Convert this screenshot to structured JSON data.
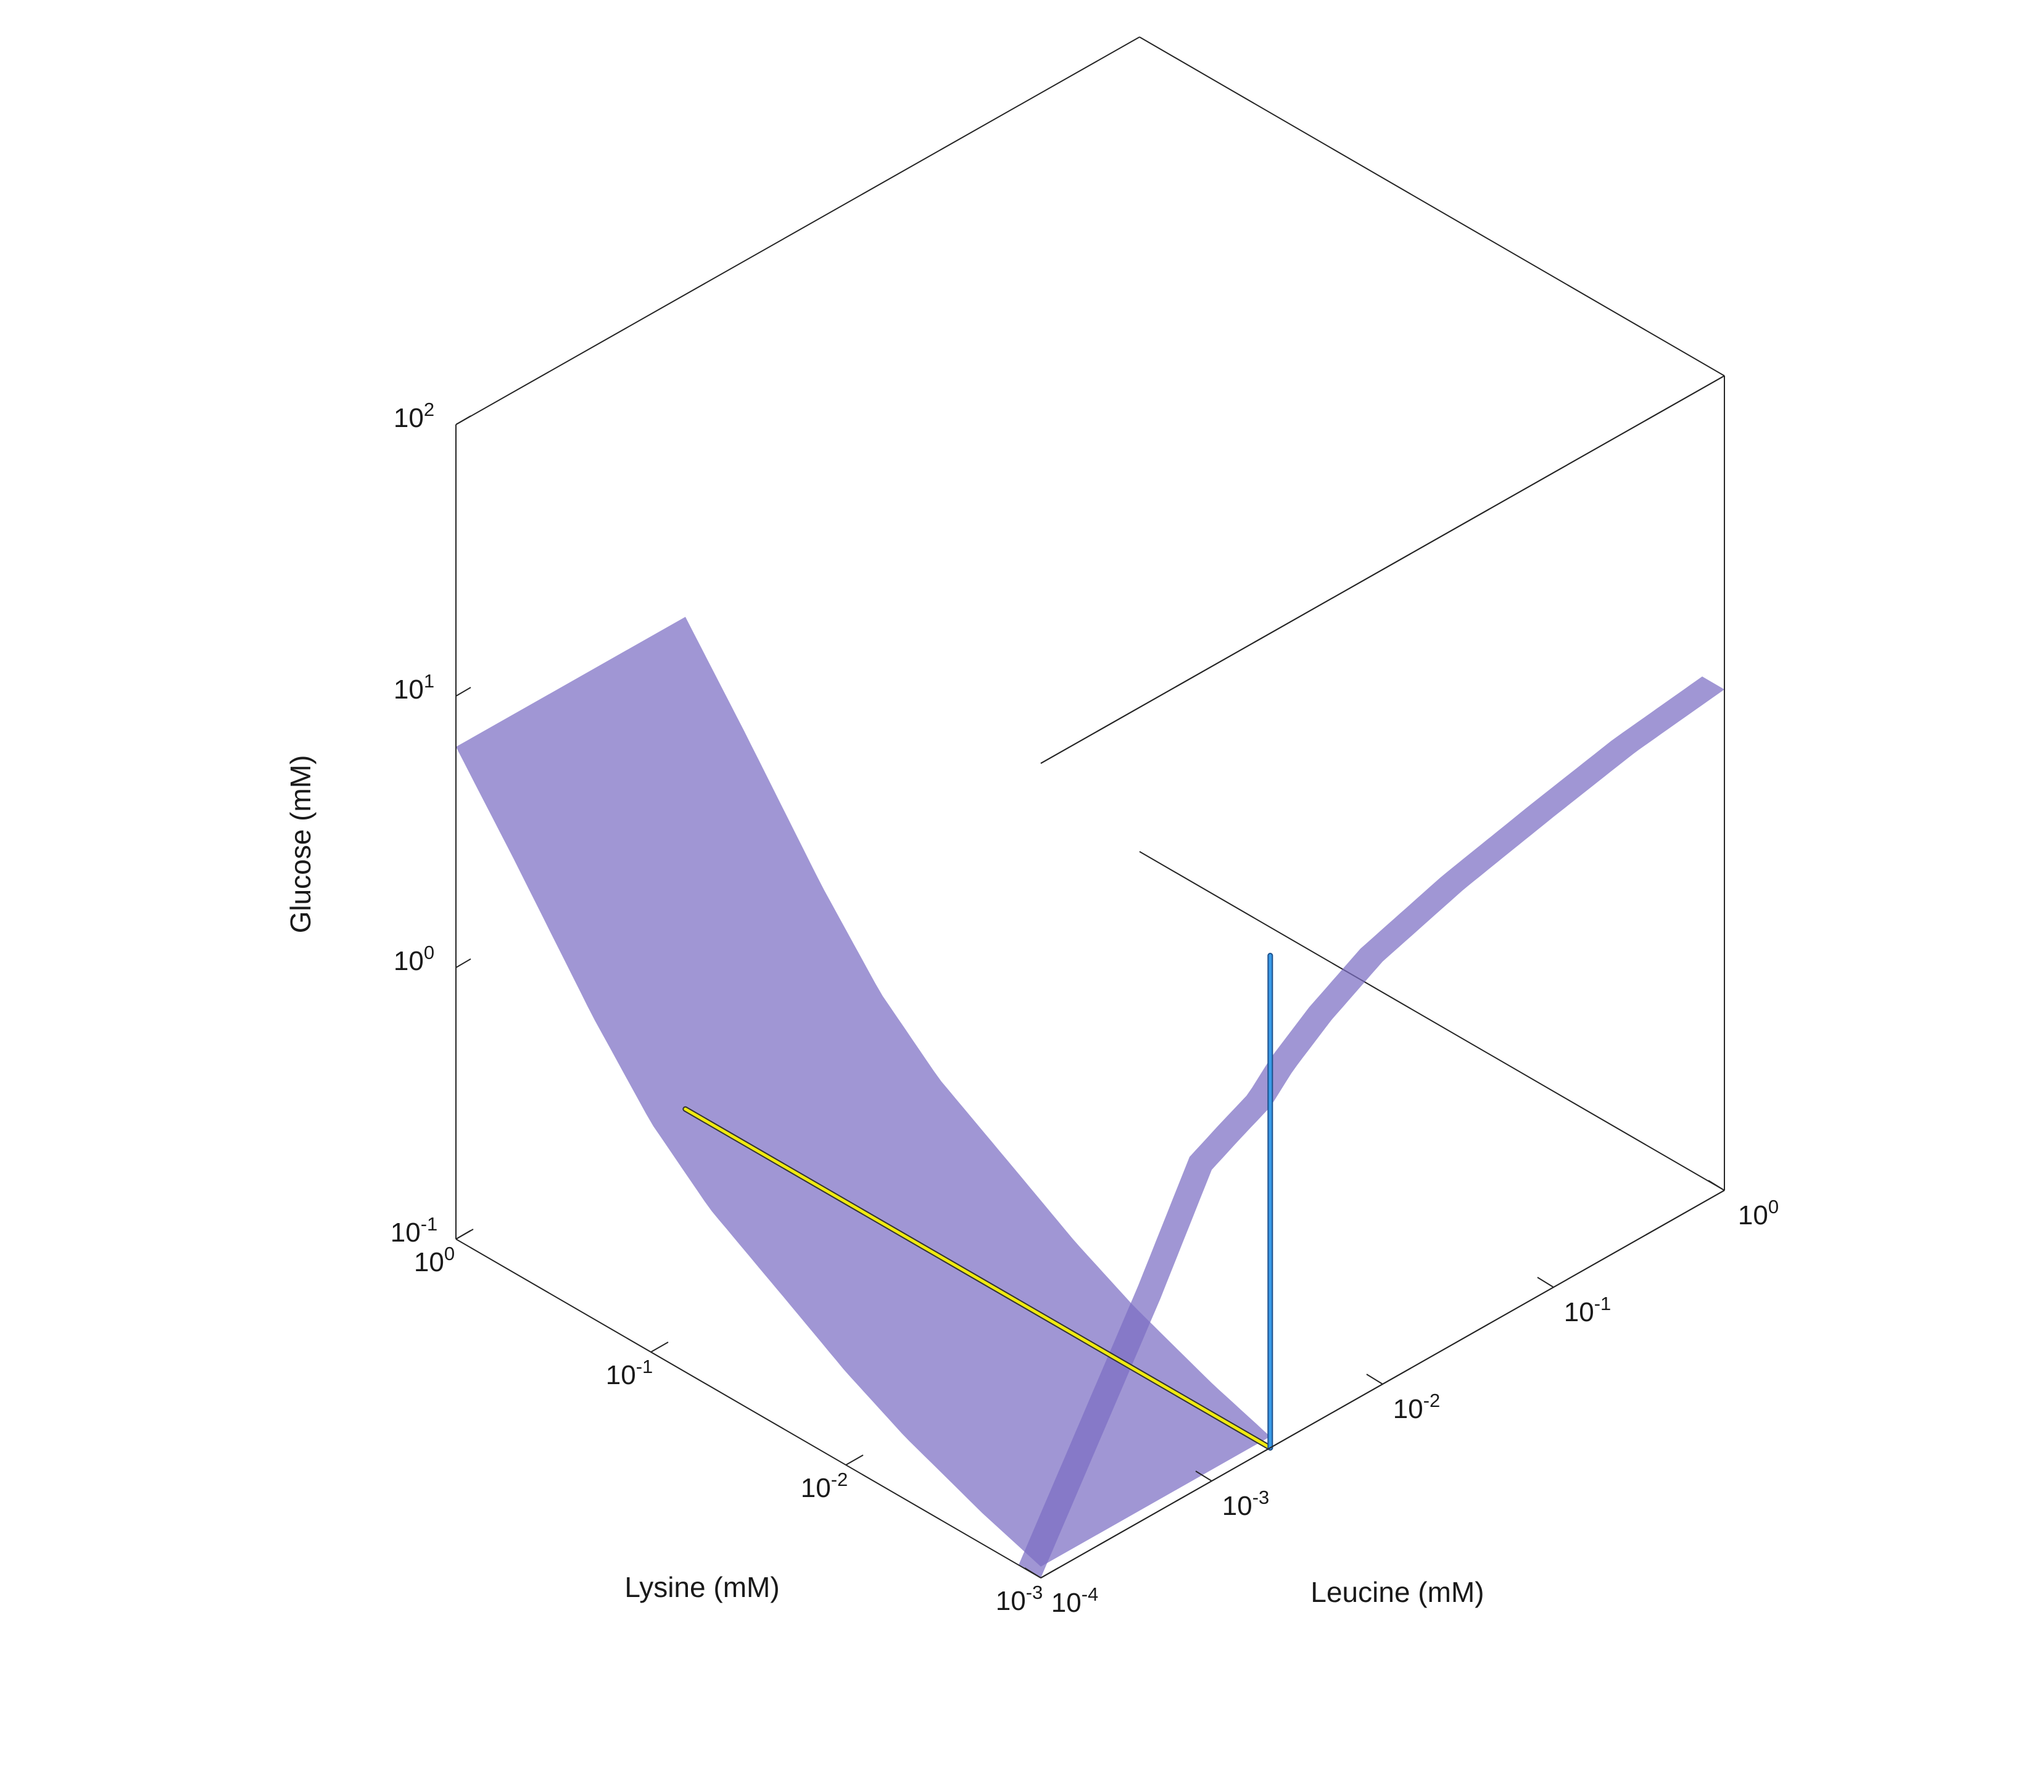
{
  "chart_data": {
    "type": "surface3d",
    "axes": {
      "x": {
        "label": "Lysine (mM)",
        "scale": "log",
        "range": [
          0.001,
          1
        ],
        "ticks": [
          {
            "base": "10",
            "exp": "-3"
          },
          {
            "base": "10",
            "exp": "-2"
          },
          {
            "base": "10",
            "exp": "-1"
          },
          {
            "base": "10",
            "exp": "0"
          }
        ]
      },
      "y": {
        "label": "Leucine (mM)",
        "scale": "log",
        "range": [
          0.0001,
          1
        ],
        "ticks": [
          {
            "base": "10",
            "exp": "-4"
          },
          {
            "base": "10",
            "exp": "-3"
          },
          {
            "base": "10",
            "exp": "-2"
          },
          {
            "base": "10",
            "exp": "-1"
          },
          {
            "base": "10",
            "exp": "0"
          }
        ]
      },
      "z": {
        "label": "Glucose (mM)",
        "scale": "log",
        "range": [
          0.1,
          100
        ],
        "ticks": [
          {
            "base": "10",
            "exp": "-1"
          },
          {
            "base": "10",
            "exp": "0"
          },
          {
            "base": "10",
            "exp": "1"
          },
          {
            "base": "10",
            "exp": "2"
          }
        ]
      }
    },
    "surfaces": [
      {
        "id": "lysine-limited-surface",
        "color": "#7b6dc4",
        "opacity": 0.72,
        "leucine_range": [
          0.0001,
          0.0022
        ],
        "lysine": [
          0.001,
          0.002,
          0.005,
          0.01,
          0.02,
          0.05,
          0.1,
          0.2,
          0.5,
          1
        ],
        "glucose": [
          0.11,
          0.13,
          0.17,
          0.22,
          0.3,
          0.45,
          0.7,
          1.3,
          3.3,
          6.5
        ]
      },
      {
        "id": "leucine-limited-surface",
        "color": "#7b6dc4",
        "opacity": 0.72,
        "lysine_range": [
          0.001,
          0.0013
        ],
        "leucine": [
          0.0001,
          0.0005,
          0.001,
          0.0015,
          0.0022,
          0.003,
          0.005,
          0.01,
          0.03,
          0.1,
          0.3,
          1
        ],
        "glucose": [
          0.1,
          0.6,
          1.4,
          1.6,
          1.8,
          2.2,
          2.8,
          3.6,
          4.5,
          5.4,
          6.3,
          7
        ]
      }
    ],
    "lines": [
      {
        "id": "lysine-transition-line",
        "color": "#f0ea10",
        "leucine": 0.0022,
        "lysine_range": [
          0.001,
          1
        ],
        "glucose": 0.1
      },
      {
        "id": "leucine-transition-line",
        "color": "#3a9be8",
        "lysine": 0.001,
        "leucine": 0.0022,
        "glucose_range": [
          0.1,
          6.5
        ]
      }
    ],
    "grid": false,
    "box": true
  }
}
